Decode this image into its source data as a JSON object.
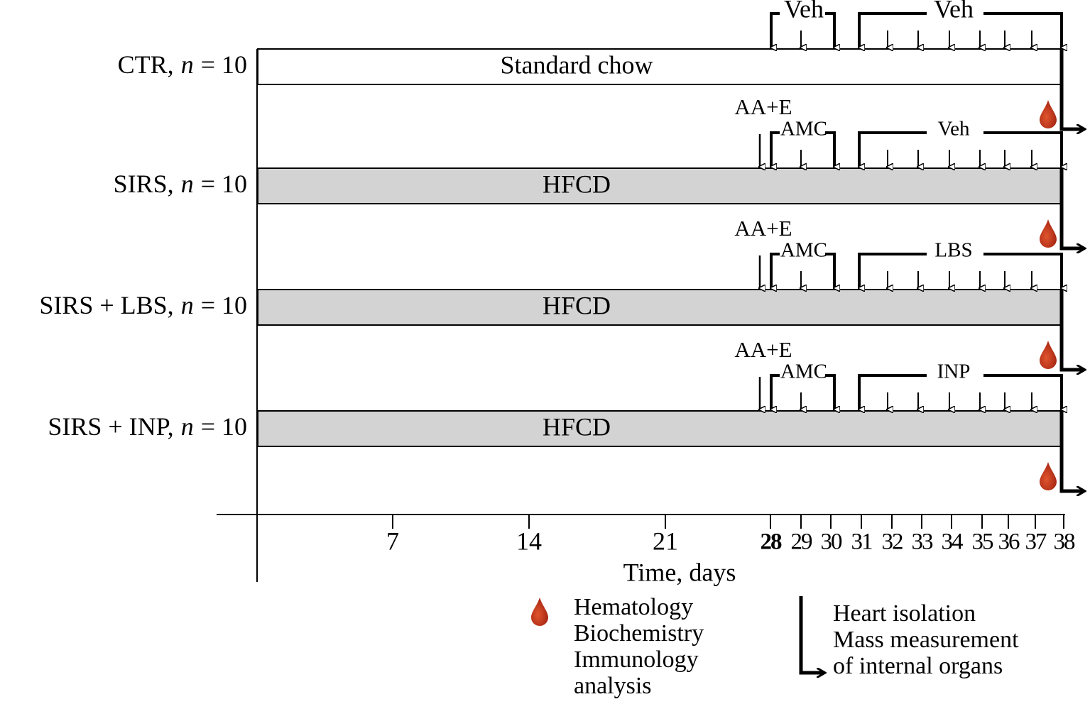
{
  "groups": [
    {
      "name": "CTR,",
      "var": "n",
      "count": "= 10",
      "diet": "Standard chow",
      "first_agent": "Veh",
      "second_agent": "Veh"
    },
    {
      "name": "SIRS,",
      "var": "n",
      "count": "= 10",
      "diet": "HFCD",
      "induction": "AA+E",
      "first_agent": "AMC",
      "second_agent": "Veh"
    },
    {
      "name": "SIRS + LBS,",
      "var": "n",
      "count": "= 10",
      "diet": "HFCD",
      "induction": "AA+E",
      "first_agent": "AMC",
      "second_agent": "LBS"
    },
    {
      "name": "SIRS + INP,",
      "var": "n",
      "count": "= 10",
      "diet": "HFCD",
      "induction": "AA+E",
      "first_agent": "AMC",
      "second_agent": "INP"
    }
  ],
  "axis": {
    "ticks": [
      "7",
      "14",
      "21",
      "28",
      "29",
      "30",
      "31",
      "32",
      "33",
      "34",
      "35",
      "36",
      "37",
      "38"
    ],
    "label": "Time, days"
  },
  "legend": {
    "sampling": [
      "Hematology",
      "Biochemistry",
      "Immunology",
      "analysis"
    ],
    "endpoint": [
      "Heart isolation",
      "Mass measurement",
      "of internal organs"
    ]
  }
}
